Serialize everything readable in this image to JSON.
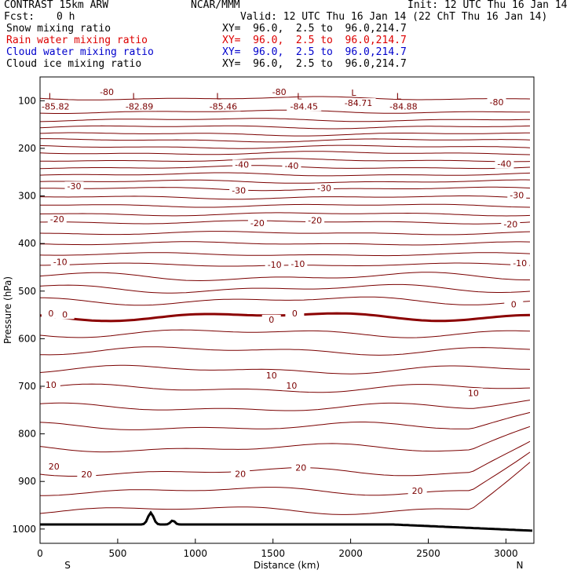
{
  "header": {
    "model": "CONTRAST 15km ARW",
    "center": "NCAR/MMM",
    "init": "Init: 12 UTC Thu 16 Jan 14",
    "fcst_label": "Fcst:",
    "fcst_value": "0 h",
    "valid": "Valid: 12 UTC Thu 16 Jan 14 (22 ChT Thu 16 Jan 14)",
    "fields": [
      {
        "name": "Snow mixing ratio",
        "xy": "XY=  96.0,  2.5 to  96.0,214.7",
        "color": "#000000"
      },
      {
        "name": "Rain water mixing ratio",
        "xy": "XY=  96.0,  2.5 to  96.0,214.7",
        "color": "#dd0000"
      },
      {
        "name": "Cloud water mixing ratio",
        "xy": "XY=  96.0,  2.5 to  96.0,214.7",
        "color": "#0000cc"
      },
      {
        "name": "Cloud ice mixing ratio",
        "xy": "XY=  96.0,  2.5 to  96.0,214.7",
        "color": "#000000"
      }
    ]
  },
  "chart_data": {
    "type": "line",
    "title": "",
    "xlabel": "Distance (km)",
    "ylabel": "Pressure (hPa)",
    "xlim": [
      0,
      3180
    ],
    "ylim": [
      1030,
      50
    ],
    "x_ticks": [
      0,
      500,
      1000,
      1500,
      2000,
      2500,
      3000
    ],
    "y_ticks": [
      100,
      200,
      300,
      400,
      500,
      600,
      700,
      800,
      900,
      1000
    ],
    "left_end_label": "S",
    "right_end_label": "N",
    "contour_color": "#7a0000",
    "zero_contour_color": "#8b0000",
    "terrain_color": "#000000",
    "contour_levels": [
      {
        "p": 95,
        "label": "-80"
      },
      {
        "p": 123
      },
      {
        "p": 140
      },
      {
        "p": 155
      },
      {
        "p": 170
      },
      {
        "p": 183
      },
      {
        "p": 197
      },
      {
        "p": 210
      },
      {
        "p": 225
      },
      {
        "p": 240,
        "label": "-40"
      },
      {
        "p": 255
      },
      {
        "p": 270
      },
      {
        "p": 285,
        "label": "-30"
      },
      {
        "p": 303
      },
      {
        "p": 320
      },
      {
        "p": 338
      },
      {
        "p": 355,
        "label": "-20"
      },
      {
        "p": 378
      },
      {
        "p": 400
      },
      {
        "p": 423
      },
      {
        "p": 445,
        "label": "-10"
      },
      {
        "p": 470
      },
      {
        "p": 495
      },
      {
        "p": 520
      },
      {
        "p": 553,
        "label": "0",
        "bold": true
      },
      {
        "p": 588
      },
      {
        "p": 625
      },
      {
        "p": 665
      },
      {
        "p": 705,
        "label": "10"
      },
      {
        "p": 745
      },
      {
        "p": 785
      },
      {
        "p": 830
      },
      {
        "p": 880,
        "label": "20"
      },
      {
        "p": 920
      },
      {
        "p": 960
      }
    ],
    "contour_labels": [
      {
        "x": 430,
        "p": 85,
        "text": "-80"
      },
      {
        "x": 1540,
        "p": 85,
        "text": "-80"
      },
      {
        "x": 2940,
        "p": 106,
        "text": "-80"
      },
      {
        "x": 1300,
        "p": 237,
        "text": "-40"
      },
      {
        "x": 1620,
        "p": 240,
        "text": "-40"
      },
      {
        "x": 2990,
        "p": 236,
        "text": "-40"
      },
      {
        "x": 220,
        "p": 283,
        "text": "-30"
      },
      {
        "x": 1280,
        "p": 292,
        "text": "-30"
      },
      {
        "x": 1830,
        "p": 287,
        "text": "-30"
      },
      {
        "x": 3070,
        "p": 302,
        "text": "-30"
      },
      {
        "x": 110,
        "p": 352,
        "text": "-20"
      },
      {
        "x": 1400,
        "p": 360,
        "text": "-20"
      },
      {
        "x": 1770,
        "p": 354,
        "text": "-20"
      },
      {
        "x": 3030,
        "p": 363,
        "text": "-20"
      },
      {
        "x": 130,
        "p": 442,
        "text": "-10"
      },
      {
        "x": 1510,
        "p": 448,
        "text": "-10"
      },
      {
        "x": 1660,
        "p": 446,
        "text": "-10"
      },
      {
        "x": 3090,
        "p": 444,
        "text": "-10"
      },
      {
        "x": 70,
        "p": 550,
        "text": "0"
      },
      {
        "x": 160,
        "p": 552,
        "text": "0"
      },
      {
        "x": 1490,
        "p": 563,
        "text": "0"
      },
      {
        "x": 1640,
        "p": 550,
        "text": "0"
      },
      {
        "x": 3050,
        "p": 531,
        "text": "0"
      },
      {
        "x": 70,
        "p": 700,
        "text": "10"
      },
      {
        "x": 1490,
        "p": 680,
        "text": "10"
      },
      {
        "x": 1620,
        "p": 702,
        "text": "10"
      },
      {
        "x": 2790,
        "p": 717,
        "text": "10"
      },
      {
        "x": 90,
        "p": 872,
        "text": "20"
      },
      {
        "x": 300,
        "p": 888,
        "text": "20"
      },
      {
        "x": 1290,
        "p": 887,
        "text": "20"
      },
      {
        "x": 1680,
        "p": 874,
        "text": "20"
      },
      {
        "x": 2430,
        "p": 923,
        "text": "20"
      }
    ],
    "lows": [
      {
        "x": 100,
        "p": 100,
        "label": "L",
        "value": "-85.82"
      },
      {
        "x": 640,
        "p": 100,
        "label": "L",
        "value": "-82.89"
      },
      {
        "x": 1180,
        "p": 100,
        "label": "L",
        "value": "-85.46"
      },
      {
        "x": 1700,
        "p": 100,
        "label": "L",
        "value": "-84.45"
      },
      {
        "x": 2050,
        "p": 93,
        "label": "L",
        "value": "-84.71"
      },
      {
        "x": 2340,
        "p": 100,
        "label": "L",
        "value": "-84.88"
      }
    ]
  }
}
